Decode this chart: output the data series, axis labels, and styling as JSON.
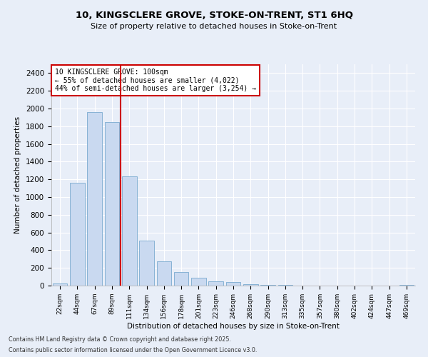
{
  "title1": "10, KINGSCLERE GROVE, STOKE-ON-TRENT, ST1 6HQ",
  "title2": "Size of property relative to detached houses in Stoke-on-Trent",
  "xlabel": "Distribution of detached houses by size in Stoke-on-Trent",
  "ylabel": "Number of detached properties",
  "bar_labels": [
    "22sqm",
    "44sqm",
    "67sqm",
    "89sqm",
    "111sqm",
    "134sqm",
    "156sqm",
    "178sqm",
    "201sqm",
    "223sqm",
    "246sqm",
    "268sqm",
    "290sqm",
    "313sqm",
    "335sqm",
    "357sqm",
    "380sqm",
    "402sqm",
    "424sqm",
    "447sqm",
    "469sqm"
  ],
  "bar_values": [
    25,
    1160,
    1960,
    1850,
    1230,
    510,
    275,
    150,
    90,
    45,
    40,
    18,
    12,
    5,
    3,
    2,
    1,
    1,
    1,
    1,
    5
  ],
  "bar_color": "#c9d9f0",
  "bar_edge_color": "#7aaad0",
  "annotation_text": "10 KINGSCLERE GROVE: 100sqm\n← 55% of detached houses are smaller (4,022)\n44% of semi-detached houses are larger (3,254) →",
  "vline_x": 3.5,
  "vline_color": "#cc0000",
  "annotation_box_color": "#ffffff",
  "annotation_box_edge_color": "#cc0000",
  "ylim": [
    0,
    2500
  ],
  "yticks": [
    0,
    200,
    400,
    600,
    800,
    1000,
    1200,
    1400,
    1600,
    1800,
    2000,
    2200,
    2400
  ],
  "background_color": "#e8eef8",
  "footer1": "Contains HM Land Registry data © Crown copyright and database right 2025.",
  "footer2": "Contains public sector information licensed under the Open Government Licence v3.0."
}
